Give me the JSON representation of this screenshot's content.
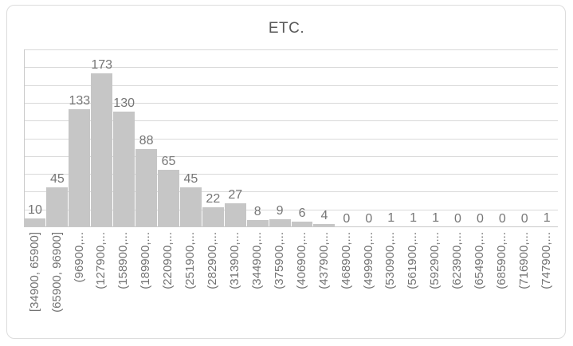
{
  "chart": {
    "style": {
      "bar_fill": "#c6c6c6",
      "gridline_color": "#d9d9d9",
      "axis_line_color": "#c9c9c9",
      "data_label_color": "#767676",
      "axis_label_color": "#737373",
      "title_color": "#595959",
      "frame_border_color": "#dcdcdc",
      "background": "#ffffff"
    }
  },
  "chart_data": {
    "type": "bar",
    "subtype": "histogram",
    "title": "ETC.",
    "xlabel": "",
    "ylabel": "",
    "categories": [
      "[34900, 65900]",
      "(65900, 96900]",
      "(96900,...",
      "(127900,...",
      "(158900,...",
      "(189900,...",
      "(220900,...",
      "(251900,...",
      "(282900,...",
      "(313900,...",
      "(344900,...",
      "(375900,...",
      "(406900,...",
      "(437900,...",
      "(468900,...",
      "(499900,...",
      "(530900,...",
      "(561900,...",
      "(592900,...",
      "(623900,...",
      "(654900,...",
      "(685900,...",
      "(716900,...",
      "(747900,..."
    ],
    "values": [
      10,
      45,
      133,
      173,
      130,
      88,
      65,
      45,
      22,
      27,
      8,
      9,
      6,
      4,
      0,
      0,
      1,
      1,
      1,
      0,
      0,
      0,
      0,
      1
    ],
    "data_labels_visible": true,
    "ylim": [
      0,
      200
    ],
    "gridline_step": 20,
    "grid": true,
    "y_tick_labels_visible": false,
    "legend": false,
    "x_label_rotation_deg": 90
  }
}
